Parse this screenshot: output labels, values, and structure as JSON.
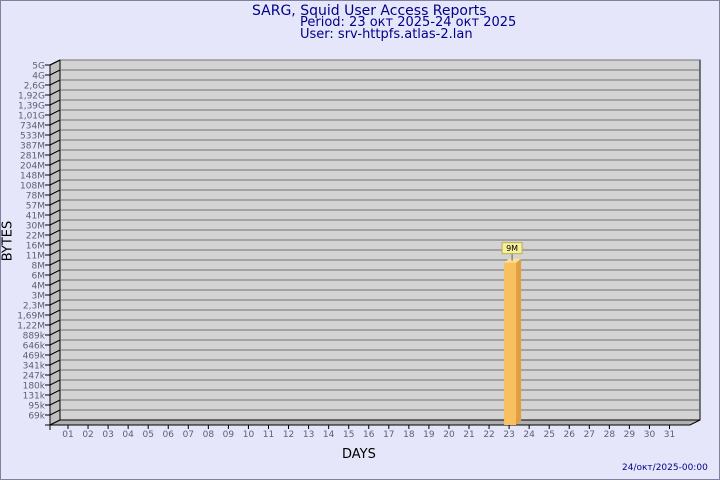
{
  "title": "SARG, Squid User Access Reports",
  "period": "Period: 23 окт 2025-24 окт 2025",
  "user": "User: srv-httpfs.atlas-2.lan",
  "footer": "24/окт/2025-00:00",
  "chart_data": {
    "type": "bar",
    "xlabel": "DAYS",
    "ylabel": "BYTES",
    "ytick_labels": [
      "5G",
      "4G",
      "2,6G",
      "1,92G",
      "1,39G",
      "1,01G",
      "734M",
      "533M",
      "387M",
      "281M",
      "204M",
      "148M",
      "108M",
      "78M",
      "57M",
      "41M",
      "30M",
      "22M",
      "16M",
      "11M",
      "8M",
      "6M",
      "4M",
      "3M",
      "2,3M",
      "1,69M",
      "1,22M",
      "889k",
      "646k",
      "469k",
      "341k",
      "247k",
      "180k",
      "131k",
      "95k",
      "69k"
    ],
    "categories": [
      "01",
      "02",
      "03",
      "04",
      "05",
      "06",
      "07",
      "08",
      "09",
      "10",
      "11",
      "12",
      "13",
      "14",
      "15",
      "16",
      "17",
      "18",
      "19",
      "20",
      "21",
      "22",
      "23",
      "24",
      "25",
      "26",
      "27",
      "28",
      "29",
      "30",
      "31"
    ],
    "bars": [
      {
        "category": "23",
        "value_label": "9M",
        "value_bytes": 9000000
      }
    ],
    "y_scale": "log",
    "grid": true,
    "colors": {
      "bar": "#f9c060",
      "bar_side": "#e0a040",
      "wall": "#d3d3d3",
      "label_bg": "#f4f0a0"
    }
  }
}
